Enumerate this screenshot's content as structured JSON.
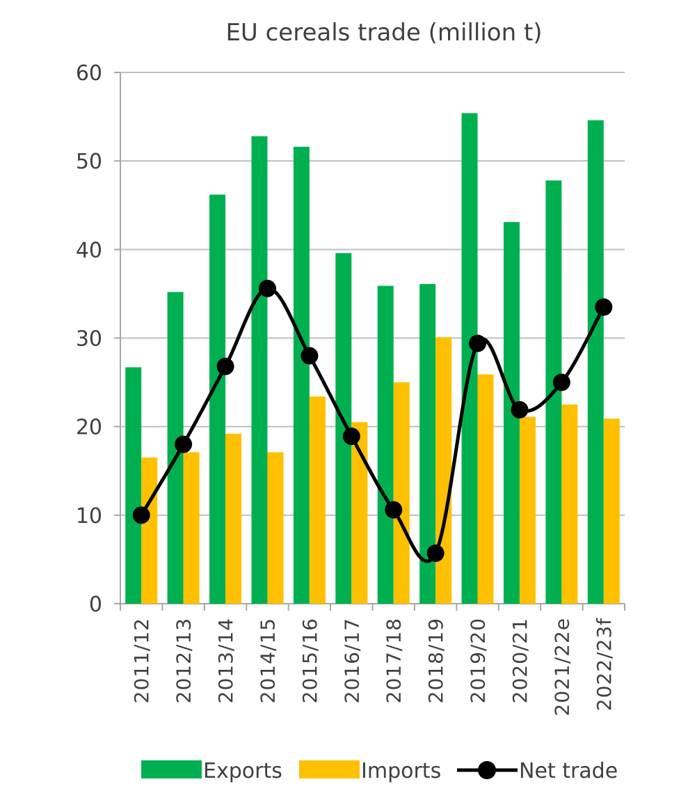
{
  "chart_data": {
    "type": "bar",
    "title": "EU cereals trade (million t)",
    "xlabel": "",
    "ylabel": "",
    "ylim": [
      0,
      60
    ],
    "yticks": [
      0,
      10,
      20,
      30,
      40,
      50,
      60
    ],
    "grid": true,
    "legend_position": "bottom",
    "categories": [
      "2011/12",
      "2012/13",
      "2013/14",
      "2014/15",
      "2015/16",
      "2016/17",
      "2017/18",
      "2018/19",
      "2019/20",
      "2020/21",
      "2021/22e",
      "2022/23f"
    ],
    "series": [
      {
        "name": "Exports",
        "kind": "bar",
        "color": "#00b050",
        "values": [
          26.7,
          35.2,
          46.2,
          52.8,
          51.6,
          39.6,
          35.9,
          36.1,
          55.4,
          43.1,
          47.8,
          54.6
        ]
      },
      {
        "name": "Imports",
        "kind": "bar",
        "color": "#ffc000",
        "values": [
          16.5,
          17.1,
          19.2,
          17.1,
          23.4,
          20.5,
          25.0,
          30.1,
          25.9,
          21.1,
          22.5,
          20.9
        ]
      },
      {
        "name": "Net trade",
        "kind": "line",
        "color": "#000000",
        "marker": "circle",
        "smooth": true,
        "values": [
          10.0,
          18.0,
          26.8,
          35.6,
          28.0,
          18.9,
          10.6,
          5.7,
          29.4,
          21.9,
          25.0,
          33.5
        ]
      }
    ]
  }
}
